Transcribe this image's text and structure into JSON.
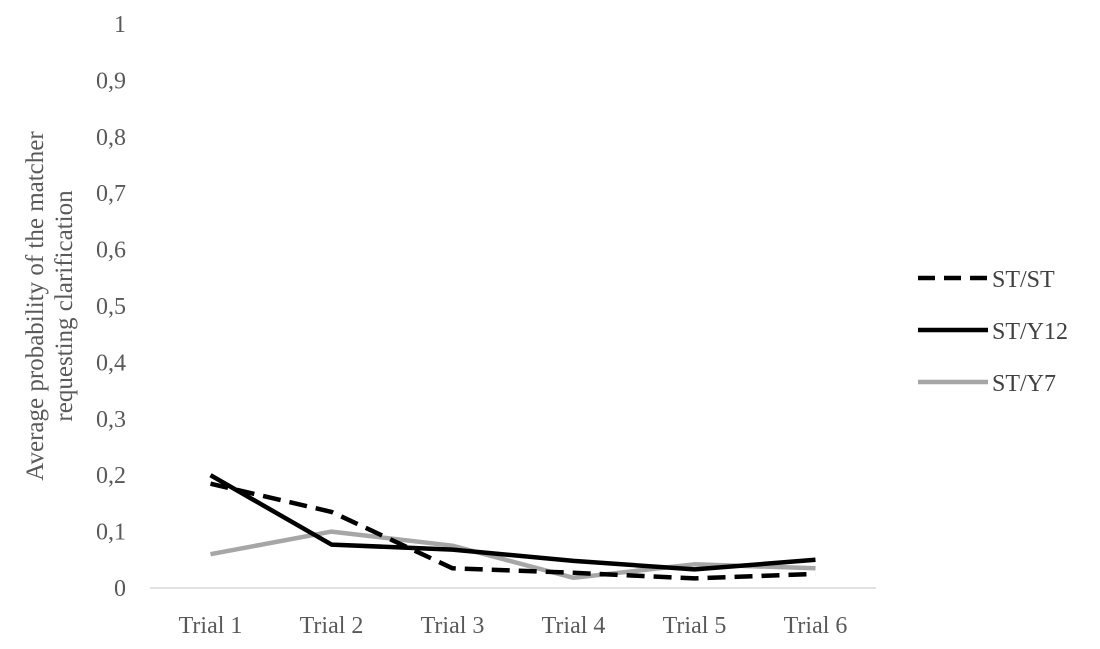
{
  "chart_data": {
    "type": "line",
    "categories": [
      "Trial 1",
      "Trial 2",
      "Trial 3",
      "Trial 4",
      "Trial 5",
      "Trial 6"
    ],
    "ylabel_lines": [
      "Average probability of the matcher",
      "requesting clarification"
    ],
    "xlabel": "",
    "title": "",
    "ylim": [
      0,
      1
    ],
    "yticks": [
      "0",
      "0,1",
      "0,2",
      "0,3",
      "0,4",
      "0,5",
      "0,6",
      "0,7",
      "0,8",
      "0,9",
      "1"
    ],
    "grid": false,
    "legend_position": "right",
    "series": [
      {
        "name": "ST/ST",
        "values": [
          0.185,
          0.135,
          0.035,
          0.027,
          0.017,
          0.025
        ],
        "color": "#000000",
        "style": "dashed"
      },
      {
        "name": "ST/Y12",
        "values": [
          0.2,
          0.077,
          0.068,
          0.048,
          0.033,
          0.05
        ],
        "color": "#000000",
        "style": "solid"
      },
      {
        "name": "ST/Y7",
        "values": [
          0.06,
          0.1,
          0.075,
          0.018,
          0.042,
          0.035
        ],
        "color": "#a6a6a6",
        "style": "solid"
      }
    ]
  }
}
